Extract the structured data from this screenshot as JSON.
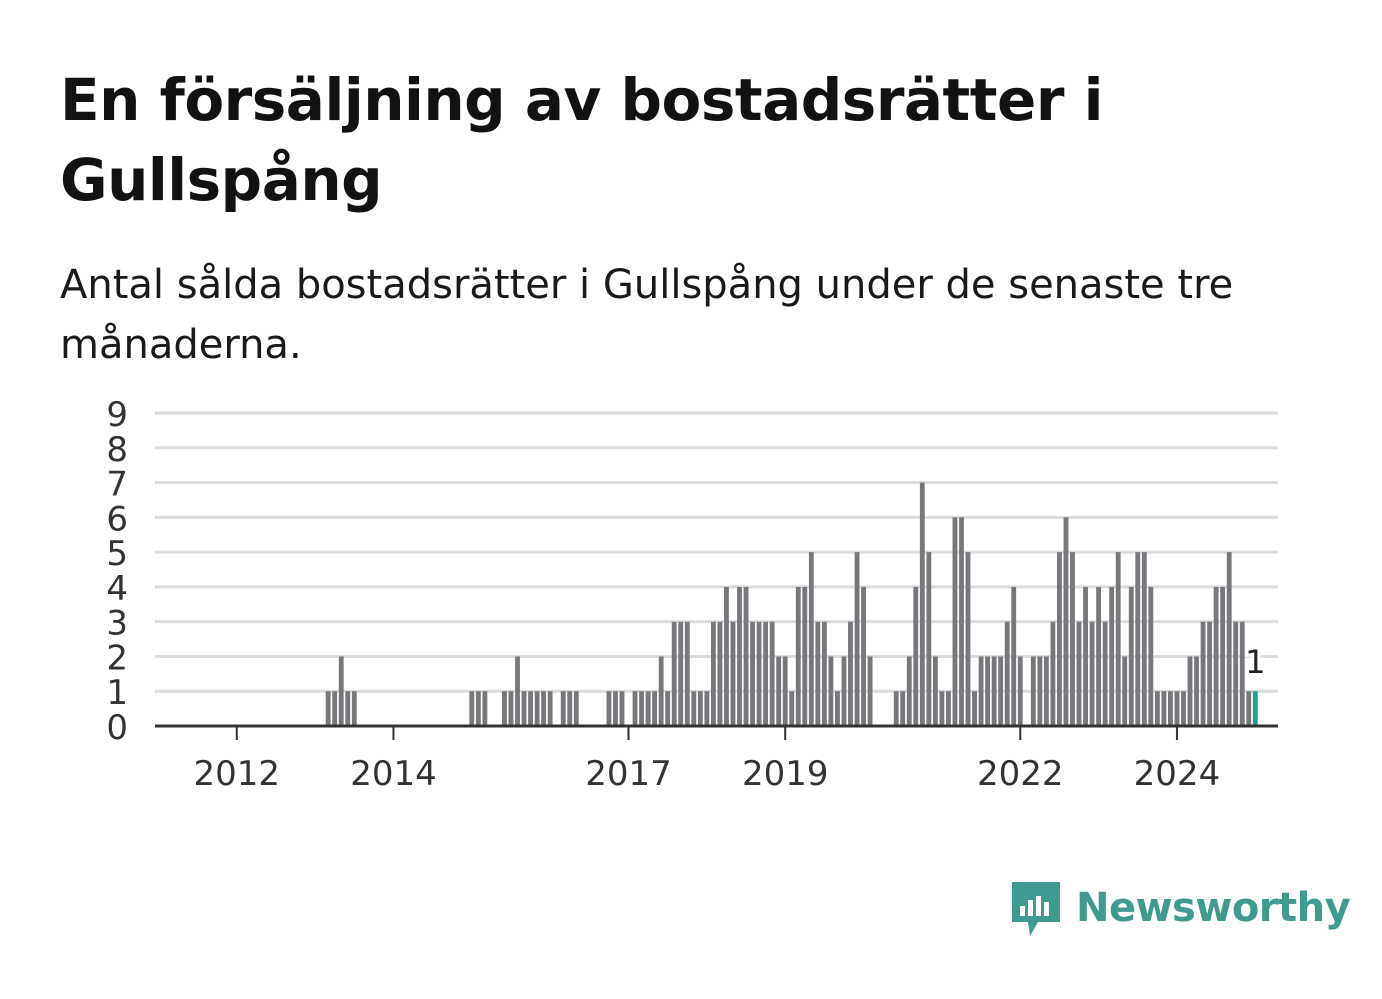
{
  "header": {
    "title": "En försäljning av bostadsrätter i Gullspång",
    "subtitle": "Antal sålda bostadsrätter i Gullspång under de senaste tre månaderna."
  },
  "brand": {
    "name": "Newsworthy",
    "color": "#3f9a90",
    "icon": "newsworthy-logo-icon"
  },
  "colors": {
    "bar": "#77777c",
    "highlight": "#23a093",
    "grid": "#dcdcdc",
    "axis": "#333333"
  },
  "chart_data": {
    "type": "bar",
    "ylim": [
      0,
      9
    ],
    "yticks": [
      "0",
      "1",
      "2",
      "3",
      "4",
      "5",
      "6",
      "7",
      "8",
      "9"
    ],
    "xtick_labels": [
      {
        "label": "2012",
        "month": "2012-01"
      },
      {
        "label": "2014",
        "month": "2014-01"
      },
      {
        "label": "2017",
        "month": "2017-01"
      },
      {
        "label": "2019",
        "month": "2019-01"
      },
      {
        "label": "2022",
        "month": "2022-01"
      },
      {
        "label": "2024",
        "month": "2024-01"
      }
    ],
    "start_month": "2011-01",
    "grid": true,
    "highlight_label": "1",
    "values": [
      0,
      0,
      0,
      0,
      0,
      0,
      0,
      0,
      0,
      0,
      0,
      0,
      0,
      0,
      0,
      0,
      0,
      0,
      0,
      0,
      0,
      0,
      0,
      0,
      0,
      0,
      1,
      1,
      2,
      1,
      1,
      0,
      0,
      0,
      0,
      0,
      0,
      0,
      0,
      0,
      0,
      0,
      0,
      0,
      0,
      0,
      0,
      0,
      1,
      1,
      1,
      0,
      0,
      1,
      1,
      2,
      1,
      1,
      1,
      1,
      1,
      0,
      1,
      1,
      1,
      0,
      0,
      0,
      0,
      1,
      1,
      1,
      0,
      1,
      1,
      1,
      1,
      2,
      1,
      3,
      3,
      3,
      1,
      1,
      1,
      3,
      3,
      4,
      3,
      4,
      4,
      3,
      3,
      3,
      3,
      2,
      2,
      1,
      4,
      4,
      5,
      3,
      3,
      2,
      1,
      2,
      3,
      5,
      4,
      2,
      0,
      0,
      0,
      1,
      1,
      2,
      4,
      7,
      5,
      2,
      1,
      1,
      6,
      6,
      5,
      1,
      2,
      2,
      2,
      2,
      3,
      4,
      2,
      0,
      2,
      2,
      2,
      3,
      5,
      6,
      5,
      3,
      4,
      3,
      4,
      3,
      4,
      5,
      2,
      4,
      5,
      5,
      4,
      1,
      1,
      1,
      1,
      1,
      2,
      2,
      3,
      3,
      4,
      4,
      5,
      3,
      3,
      1,
      1
    ]
  }
}
